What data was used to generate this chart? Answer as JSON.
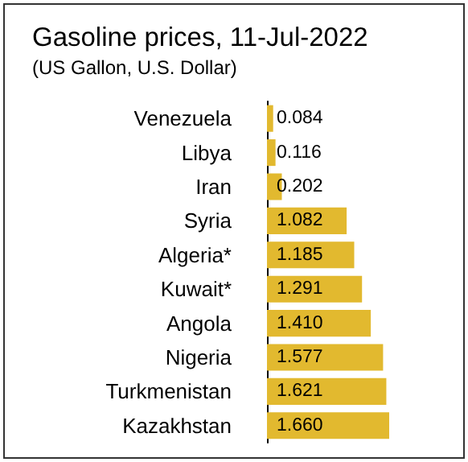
{
  "chart_data": {
    "type": "bar",
    "orientation": "horizontal",
    "title": "Gasoline prices, 11-Jul-2022",
    "subtitle": "(US Gallon, U.S. Dollar)",
    "categories": [
      "Venezuela",
      "Libya",
      "Iran",
      "Syria",
      "Algeria*",
      "Kuwait*",
      "Angola",
      "Nigeria",
      "Turkmenistan",
      "Kazakhstan"
    ],
    "values": [
      0.084,
      0.116,
      0.202,
      1.082,
      1.185,
      1.291,
      1.41,
      1.577,
      1.621,
      1.66
    ],
    "value_labels": [
      "0.084",
      "0.116",
      "0.202",
      "1.082",
      "1.185",
      "1.291",
      "1.410",
      "1.577",
      "1.621",
      "1.660"
    ],
    "color": "#e2b92f"
  }
}
